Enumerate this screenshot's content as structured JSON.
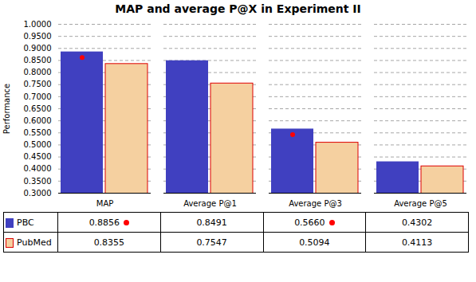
{
  "chart_data": {
    "type": "bar",
    "title": "MAP and average P@X in Experiment II",
    "categories": [
      "MAP",
      "Average P@1",
      "Average P@3",
      "Average P@5"
    ],
    "series": [
      {
        "name": "PBC",
        "color": "#4040c0",
        "values": [
          0.8856,
          0.8491,
          0.566,
          0.4302
        ],
        "value_labels": [
          "0.8856",
          "0.8491",
          "0.5660",
          "0.4302"
        ],
        "significant": [
          true,
          false,
          true,
          false
        ]
      },
      {
        "name": "PubMed",
        "color": "#f5d0a0",
        "edge_color": "#dd0000",
        "values": [
          0.8355,
          0.7547,
          0.5094,
          0.4113
        ],
        "value_labels": [
          "0.8355",
          "0.7547",
          "0.5094",
          "0.4113"
        ]
      }
    ],
    "ylabel": "Performance",
    "ylim": [
      0.3,
      1.0
    ],
    "yticks": [
      {
        "value": 0.3,
        "label": "0.3000"
      },
      {
        "value": 0.35,
        "label": "0.3500"
      },
      {
        "value": 0.4,
        "label": "0.4000"
      },
      {
        "value": 0.45,
        "label": "0.4500"
      },
      {
        "value": 0.5,
        "label": "0.5000"
      },
      {
        "value": 0.55,
        "label": "0.5500"
      },
      {
        "value": 0.6,
        "label": "0.6000"
      },
      {
        "value": 0.65,
        "label": "0.6500"
      },
      {
        "value": 0.7,
        "label": "0.7000"
      },
      {
        "value": 0.75,
        "label": "0.7500"
      },
      {
        "value": 0.8,
        "label": "0.8000"
      },
      {
        "value": 0.85,
        "label": "0.8500"
      },
      {
        "value": 0.9,
        "label": "0.9000"
      },
      {
        "value": 0.95,
        "label": "0.9500"
      },
      {
        "value": 1.0,
        "label": "1.0000"
      }
    ],
    "grid": true
  }
}
